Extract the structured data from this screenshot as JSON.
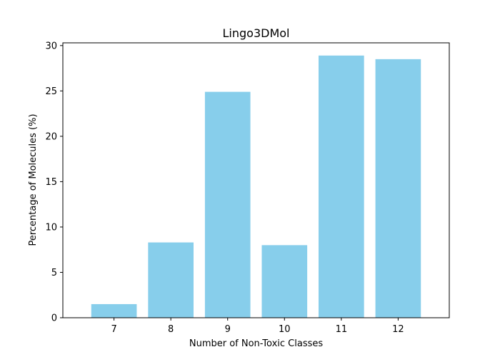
{
  "chart_data": {
    "type": "bar",
    "title": "Lingo3DMol",
    "xlabel": "Number of Non-Toxic Classes",
    "ylabel": "Percentage of Molecules (%)",
    "categories": [
      "7",
      "8",
      "9",
      "10",
      "11",
      "12"
    ],
    "values": [
      1.5,
      8.3,
      24.9,
      8.0,
      28.9,
      28.5
    ],
    "ylim": [
      0,
      30.3
    ],
    "yticks": [
      0,
      5,
      10,
      15,
      20,
      25,
      30
    ],
    "bar_color": "#87ceeb",
    "grid": false,
    "legend": "none"
  }
}
